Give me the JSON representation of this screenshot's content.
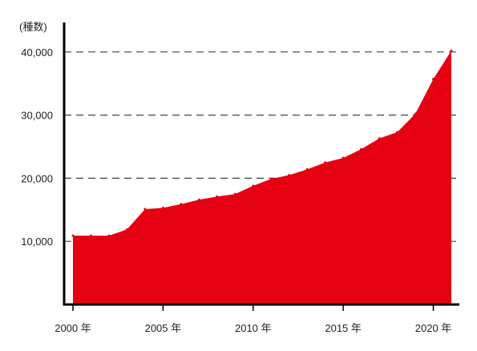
{
  "chart_data": {
    "type": "area",
    "unit_label": "(種数)",
    "x": [
      2000,
      2001,
      2002,
      2003,
      2004,
      2005,
      2006,
      2007,
      2008,
      2009,
      2010,
      2011,
      2012,
      2013,
      2014,
      2015,
      2016,
      2017,
      2018,
      2019,
      2020,
      2021
    ],
    "values": [
      10900,
      10900,
      10900,
      11900,
      15100,
      15300,
      15900,
      16600,
      17100,
      17500,
      18800,
      19900,
      20500,
      21400,
      22500,
      23200,
      24600,
      26300,
      27300,
      30200,
      35700,
      40200
    ],
    "xlim": [
      2000,
      2021
    ],
    "ylim": [
      0,
      45000
    ],
    "yticks": [
      10000,
      20000,
      30000,
      40000
    ],
    "ytick_labels": [
      "10,000",
      "20,000",
      "30,000",
      "40,000"
    ],
    "xticks": [
      2000,
      2005,
      2010,
      2015,
      2020
    ],
    "xtick_labels": [
      "2000 年",
      "2005 年",
      "2010 年",
      "2015 年",
      "2020 年"
    ],
    "grid": "horizontal-dashed",
    "fill_color": "#e50012",
    "axis_color": "#000000",
    "grid_color": "#444444"
  }
}
